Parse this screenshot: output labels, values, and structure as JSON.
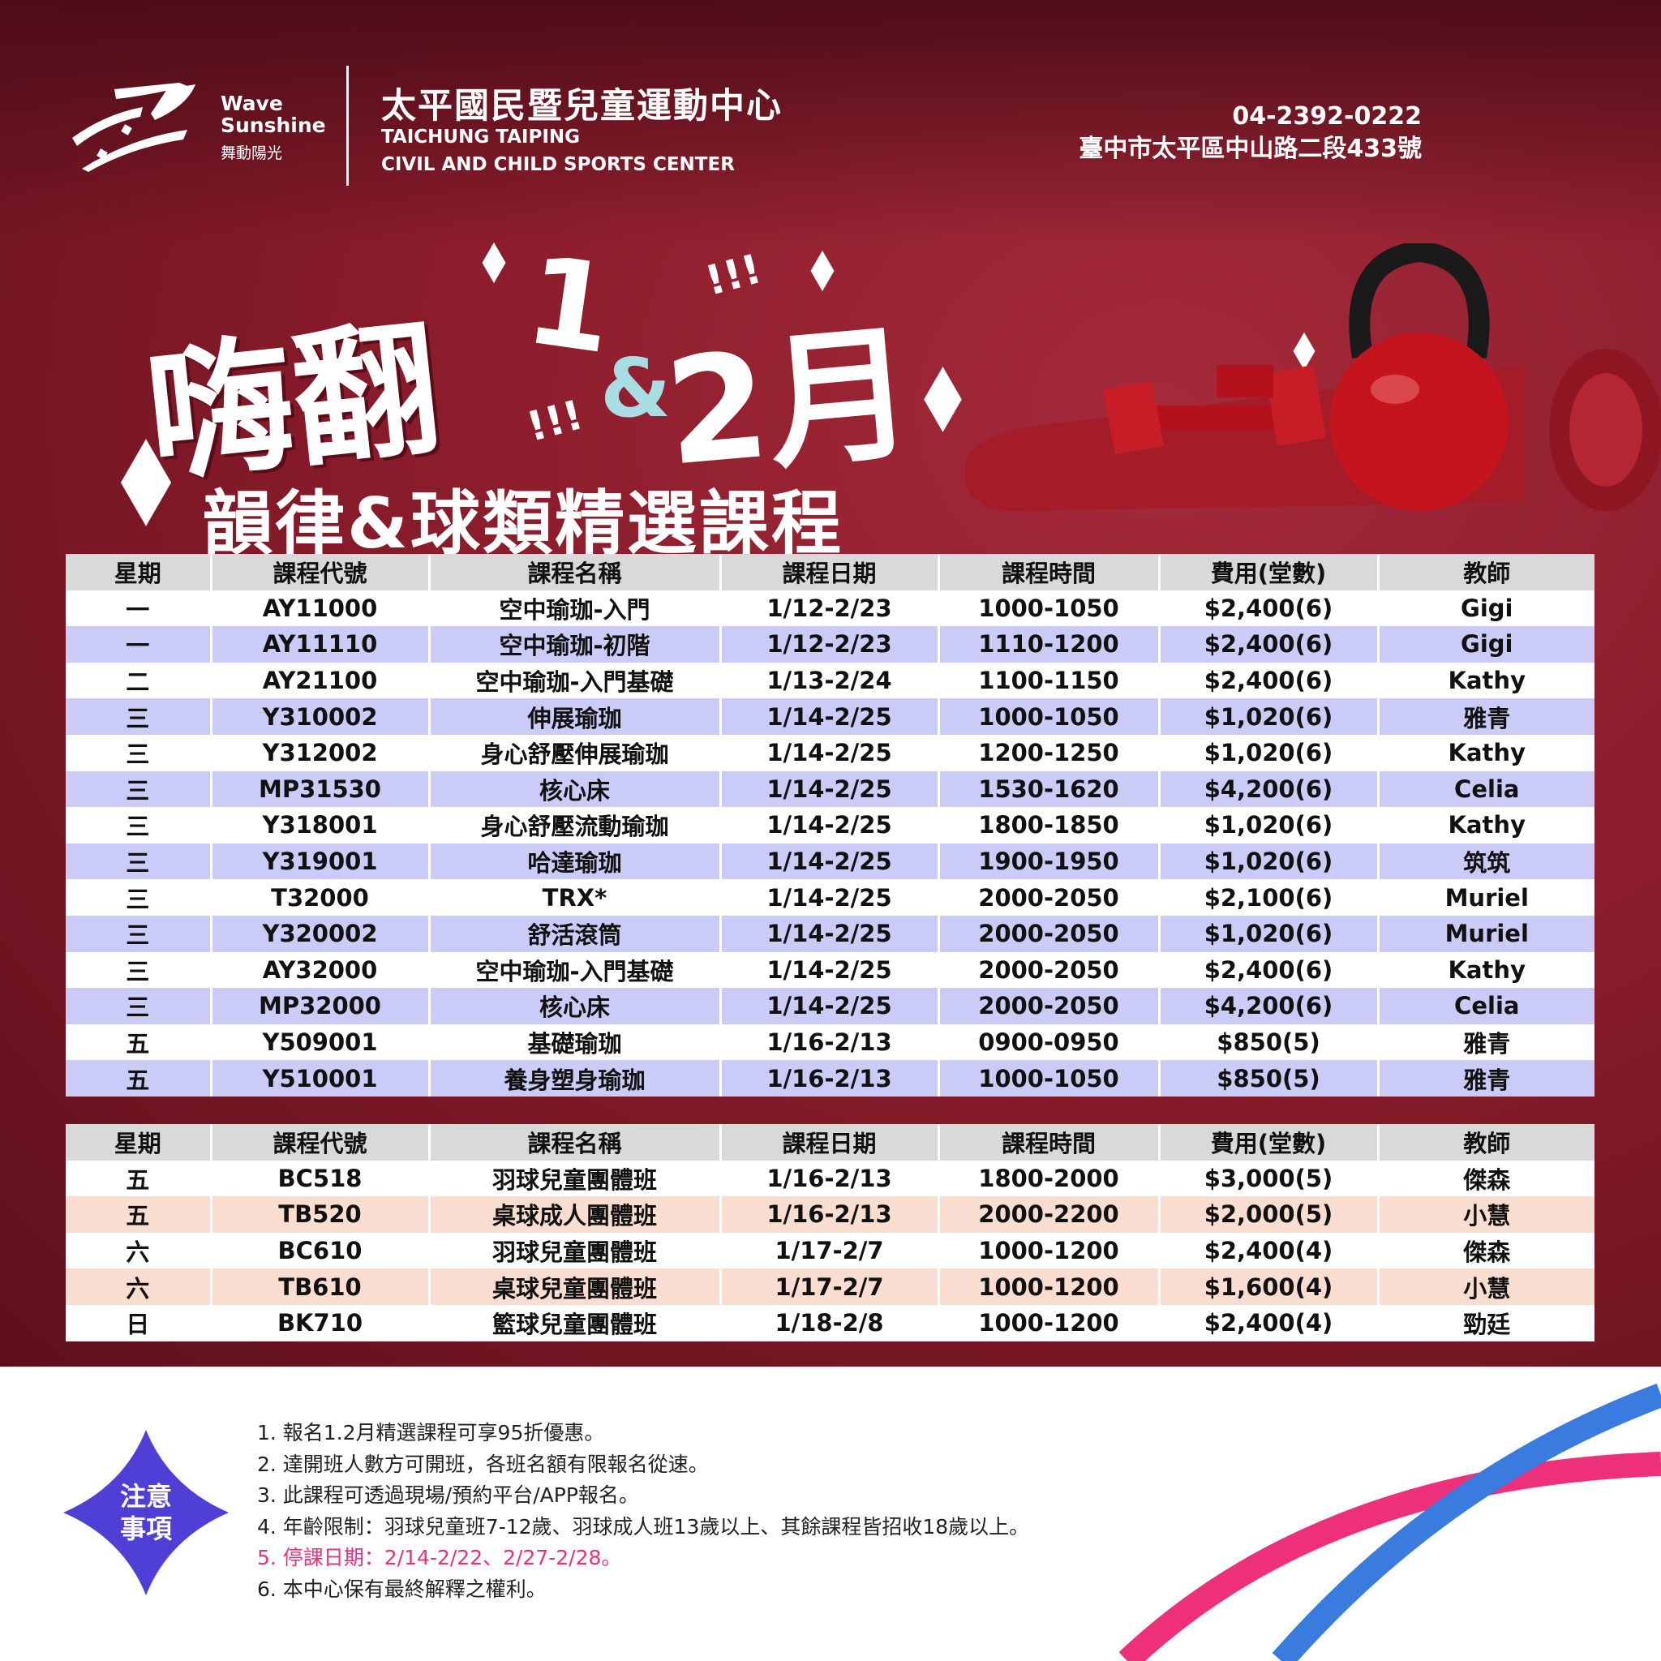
{
  "header": {
    "brand_en_1": "Wave",
    "brand_en_2": "Sunshine",
    "brand_zh": "舞動陽光",
    "center_zh": "太平國民暨兒童運動中心",
    "center_en_1": "TAICHUNG TAIPING",
    "center_en_2": "CIVIL AND CHILD SPORTS CENTER",
    "phone": "04-2392-0222",
    "address": "臺中市太平區中山路二段433號"
  },
  "title": {
    "main": "嗨翻",
    "month1": "1",
    "exclaim": "!!!",
    "amp": "&",
    "month2": "2月",
    "subtitle": "韻律&球類精選課程"
  },
  "columns": [
    "星期",
    "課程代號",
    "課程名稱",
    "課程日期",
    "課程時間",
    "費用(堂數)",
    "教師"
  ],
  "table1": [
    [
      "一",
      "AY11000",
      "空中瑜珈-入門",
      "1/12-2/23",
      "1000-1050",
      "$2,400(6)",
      "Gigi"
    ],
    [
      "一",
      "AY11110",
      "空中瑜珈-初階",
      "1/12-2/23",
      "1110-1200",
      "$2,400(6)",
      "Gigi"
    ],
    [
      "二",
      "AY21100",
      "空中瑜珈-入門基礎",
      "1/13-2/24",
      "1100-1150",
      "$2,400(6)",
      "Kathy"
    ],
    [
      "三",
      "Y310002",
      "伸展瑜珈",
      "1/14-2/25",
      "1000-1050",
      "$1,020(6)",
      "雅青"
    ],
    [
      "三",
      "Y312002",
      "身心舒壓伸展瑜珈",
      "1/14-2/25",
      "1200-1250",
      "$1,020(6)",
      "Kathy"
    ],
    [
      "三",
      "MP31530",
      "核心床",
      "1/14-2/25",
      "1530-1620",
      "$4,200(6)",
      "Celia"
    ],
    [
      "三",
      "Y318001",
      "身心舒壓流動瑜珈",
      "1/14-2/25",
      "1800-1850",
      "$1,020(6)",
      "Kathy"
    ],
    [
      "三",
      "Y319001",
      "哈達瑜珈",
      "1/14-2/25",
      "1900-1950",
      "$1,020(6)",
      "筑筑"
    ],
    [
      "三",
      "T32000",
      "TRX*",
      "1/14-2/25",
      "2000-2050",
      "$2,100(6)",
      "Muriel"
    ],
    [
      "三",
      "Y320002",
      "舒活滾筒",
      "1/14-2/25",
      "2000-2050",
      "$1,020(6)",
      "Muriel"
    ],
    [
      "三",
      "AY32000",
      "空中瑜珈-入門基礎",
      "1/14-2/25",
      "2000-2050",
      "$2,400(6)",
      "Kathy"
    ],
    [
      "三",
      "MP32000",
      "核心床",
      "1/14-2/25",
      "2000-2050",
      "$4,200(6)",
      "Celia"
    ],
    [
      "五",
      "Y509001",
      "基礎瑜珈",
      "1/16-2/13",
      "0900-0950",
      "$850(5)",
      "雅青"
    ],
    [
      "五",
      "Y510001",
      "養身塑身瑜珈",
      "1/16-2/13",
      "1000-1050",
      "$850(5)",
      "雅青"
    ]
  ],
  "table2": [
    [
      "五",
      "BC518",
      "羽球兒童團體班",
      "1/16-2/13",
      "1800-2000",
      "$3,000(5)",
      "傑森"
    ],
    [
      "五",
      "TB520",
      "桌球成人團體班",
      "1/16-2/13",
      "2000-2200",
      "$2,000(5)",
      "小慧"
    ],
    [
      "六",
      "BC610",
      "羽球兒童團體班",
      "1/17-2/7",
      "1000-1200",
      "$2,400(4)",
      "傑森"
    ],
    [
      "六",
      "TB610",
      "桌球兒童團體班",
      "1/17-2/7",
      "1000-1200",
      "$1,600(4)",
      "小慧"
    ],
    [
      "日",
      "BK710",
      "籃球兒童團體班",
      "1/18-2/8",
      "1000-1200",
      "$2,400(4)",
      "勁廷"
    ]
  ],
  "notes": {
    "badge_1": "注意",
    "badge_2": "事項",
    "items": [
      "1. 報名1.2月精選課程可享95折優惠。",
      "2. 達開班人數方可開班，各班名額有限報名從速。",
      "3. 此課程可透過現場/預約平台/APP報名。",
      "4. 年齡限制：羽球兒童班7-12歲、羽球成人班13歲以上、其餘課程皆招收18歲以上。",
      "5. 停課日期：2/14-2/22、2/27-2/28。",
      "6. 本中心保有最終解釋之權利。"
    ],
    "highlight_color": "#e8307a"
  },
  "colors": {
    "row_alt_1": "#cbcbf7",
    "row_alt_2": "#f9ddd1",
    "badge": "#4f3fd6",
    "curve_pink": "#ee2f7a",
    "curve_blue": "#3a7be0"
  }
}
